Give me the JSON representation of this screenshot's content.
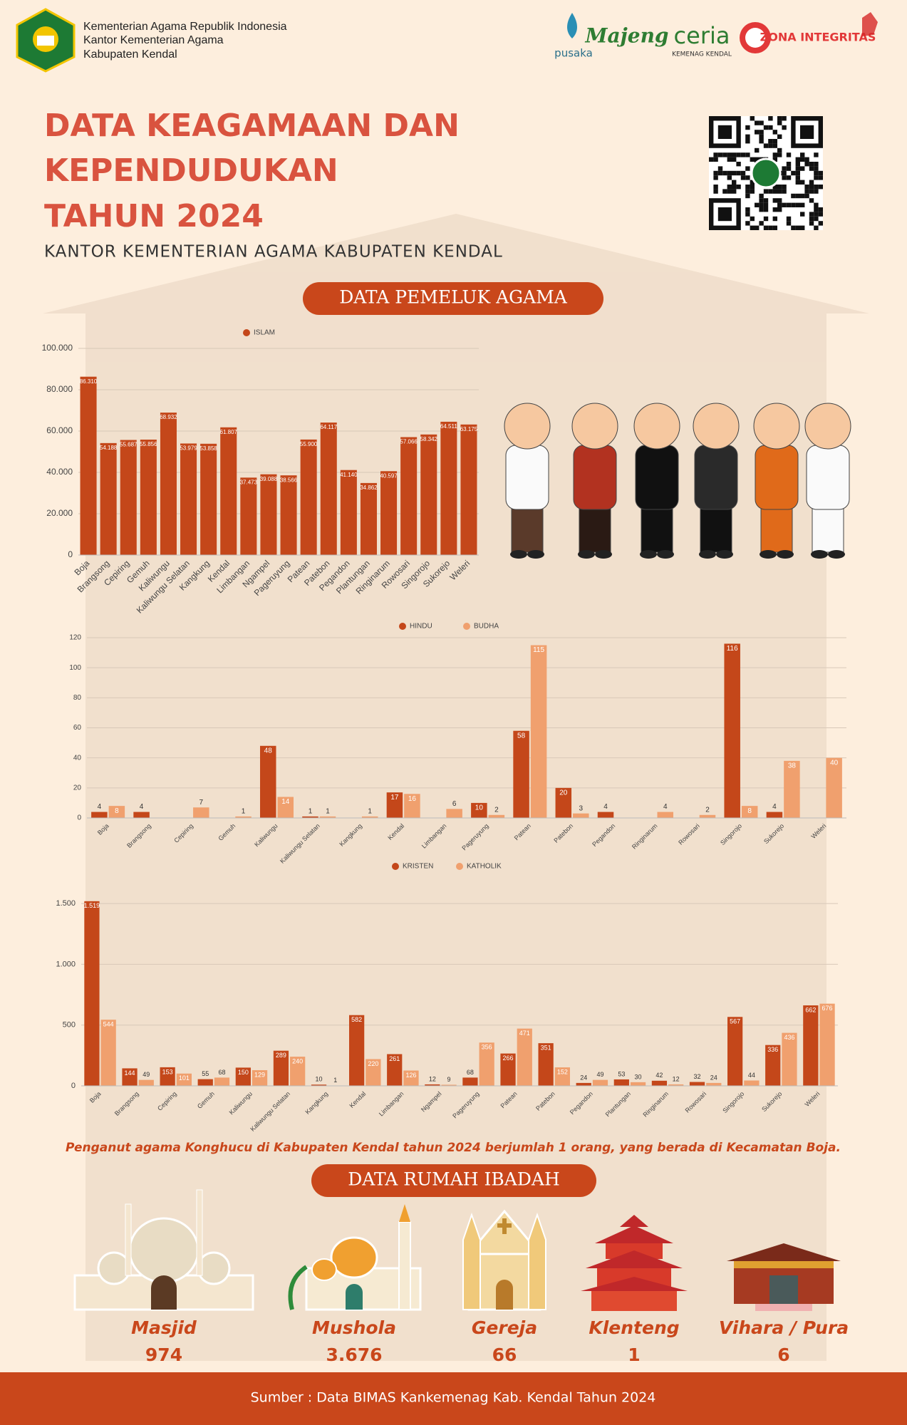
{
  "header": {
    "org_lines": [
      "Kementerian Agama Republik Indonesia",
      "Kantor Kementerian Agama",
      "Kabupaten Kendal"
    ],
    "logos": [
      "pusaka",
      "Majeng",
      "ceria",
      "KEMENAG KENDAL",
      "ZONA INTEGRITAS"
    ]
  },
  "title_lines": [
    "DATA KEAGAMAAN DAN",
    "KEPENDUDUKAN",
    "TAHUN 2024"
  ],
  "subtitle": "KANTOR KEMENTERIAN AGAMA KABUPATEN KENDAL",
  "section_1": "DATA PEMELUK AGAMA",
  "chart_data": [
    {
      "type": "bar",
      "categories": [
        "Boja",
        "Brangsong",
        "Cepiring",
        "Gemuh",
        "Kaliwungu",
        "Kaliwungu Selatan",
        "Kangkung",
        "Kendal",
        "Limbangan",
        "Ngampel",
        "Pageruyung",
        "Patean",
        "Patebon",
        "Pegandon",
        "Plantungan",
        "Ringinarum",
        "Rowosari",
        "Singorojo",
        "Sukorejo",
        "Weleri"
      ],
      "series": [
        {
          "name": "ISLAM",
          "color": "#c4471a",
          "values": [
            86310,
            54188,
            55687,
            55856,
            68932,
            53979,
            53858,
            61807,
            37473,
            39088,
            38566,
            55900,
            64117,
            41140,
            34862,
            40597,
            57066,
            58342,
            64511,
            63175
          ],
          "value_labels": [
            "86.310",
            "54.188",
            "55.687",
            "55.856",
            "68.932",
            "53.979",
            "53.858",
            "61.807",
            "37.473",
            "39.088",
            "38.566",
            "55.900",
            "64.117",
            "41.140",
            "34.862",
            "40.597",
            "57.066",
            "58.342",
            "64.511",
            "63.175"
          ]
        }
      ],
      "ylim": [
        0,
        100000
      ],
      "yticks": [
        0,
        {
          "value": 20000,
          "label": "20.000"
        },
        {
          "value": 40000,
          "label": "40.000"
        },
        {
          "value": 60000,
          "label": "60.000"
        },
        {
          "value": 80000,
          "label": "80.000"
        },
        {
          "value": 100000,
          "label": "100.000"
        }
      ],
      "grid": true
    },
    {
      "type": "bar",
      "categories": [
        "Boja",
        "Brangsong",
        "Cepiring",
        "Gemuh",
        "Kaliwungu",
        "Kaliwungu Selatan",
        "Kangkung",
        "Kendal",
        "Limbangan",
        "Pageruyung",
        "Patean",
        "Patebon",
        "Pegandon",
        "Ringinarum",
        "Rowosari",
        "Singorojo",
        "Sukorejo",
        "Weleri"
      ],
      "series": [
        {
          "name": "HINDU",
          "color": "#c4471a",
          "values": [
            4,
            4,
            null,
            null,
            48,
            1,
            null,
            17,
            null,
            10,
            58,
            20,
            4,
            null,
            null,
            116,
            4,
            null
          ]
        },
        {
          "name": "BUDHA",
          "color": "#f0a06e",
          "values": [
            8,
            null,
            7,
            1,
            14,
            1,
            1,
            16,
            6,
            2,
            115,
            3,
            null,
            4,
            2,
            8,
            38,
            40
          ]
        }
      ],
      "ylim": [
        0,
        120
      ],
      "yticks": [
        0,
        20,
        40,
        60,
        80,
        100,
        120
      ],
      "grid": true
    },
    {
      "type": "bar",
      "categories": [
        "Boja",
        "Brangsong",
        "Cepiring",
        "Gemuh",
        "Kaliwungu",
        "Kaliwungu Selatan",
        "Kangkung",
        "Kendal",
        "Limbangan",
        "Ngampel",
        "Pageruyung",
        "Patean",
        "Patebon",
        "Pegandon",
        "Plantungan",
        "Ringinarum",
        "Rowosari",
        "Singorojo",
        "Sukorejo",
        "Weleri"
      ],
      "series": [
        {
          "name": "KRISTEN",
          "color": "#c4471a",
          "values": [
            1519,
            144,
            153,
            55,
            150,
            289,
            10,
            582,
            261,
            12,
            68,
            266,
            351,
            24,
            53,
            42,
            32,
            567,
            336,
            662
          ],
          "value_labels": [
            "1.519",
            "144",
            "153",
            "55",
            "150",
            "289",
            "10",
            "582",
            "261",
            "12",
            "68",
            "266",
            "351",
            "24",
            "53",
            "42",
            "32",
            "567",
            "336",
            "662"
          ]
        },
        {
          "name": "KATHOLIK",
          "color": "#f0a06e",
          "values": [
            544,
            49,
            101,
            68,
            129,
            240,
            1,
            220,
            126,
            9,
            356,
            471,
            152,
            49,
            30,
            12,
            24,
            44,
            436,
            676
          ]
        }
      ],
      "ylim": [
        0,
        1600
      ],
      "yticks": [
        0,
        500,
        {
          "value": 1000,
          "label": "1.000"
        },
        {
          "value": 1500,
          "label": "1.500"
        }
      ],
      "grid": true
    }
  ],
  "note": "Penganut agama Konghucu di Kabupaten Kendal tahun 2024 berjumlah 1 orang, yang berada di Kecamatan Boja.",
  "section_2": "DATA RUMAH IBADAH",
  "worship": [
    {
      "name": "Masjid",
      "count": "974"
    },
    {
      "name": "Mushola",
      "count": "3.676"
    },
    {
      "name": "Gereja",
      "count": "66"
    },
    {
      "name": "Klenteng",
      "count": "1"
    },
    {
      "name": "Vihara / Pura",
      "count": "6"
    }
  ],
  "footer": "Sumber : Data BIMAS Kankemenag Kab. Kendal Tahun 2024"
}
